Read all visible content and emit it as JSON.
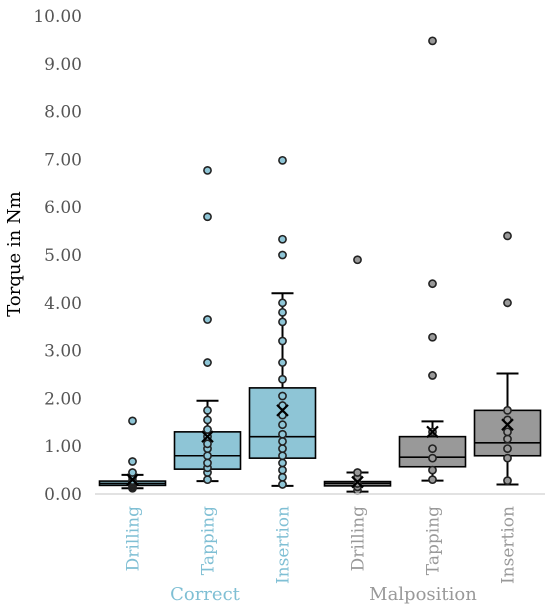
{
  "chart_data": {
    "type": "box",
    "title": "",
    "xlabel": "",
    "ylabel": "Torque in Nm",
    "ylim": [
      0,
      10
    ],
    "yticks": [
      "0.00",
      "1.00",
      "2.00",
      "3.00",
      "4.00",
      "5.00",
      "6.00",
      "7.00",
      "8.00",
      "9.00",
      "10.00"
    ],
    "grid": false,
    "groups": [
      {
        "label": "Correct",
        "color": "#7fbfd4"
      },
      {
        "label": "Malposition",
        "color": "#999999"
      }
    ],
    "boxes": [
      {
        "category": "Drilling",
        "group": "Correct",
        "fill": "#8ec5d6",
        "whisker_low": 0.12,
        "q1": 0.18,
        "median": 0.22,
        "q3": 0.27,
        "whisker_high": 0.4,
        "mean": 0.3,
        "points": [
          0.12,
          0.15,
          0.18,
          0.2,
          0.22,
          0.25,
          0.28,
          0.35,
          0.45,
          0.68,
          1.53
        ]
      },
      {
        "category": "Tapping",
        "group": "Correct",
        "fill": "#8ec5d6",
        "whisker_low": 0.27,
        "q1": 0.52,
        "median": 0.8,
        "q3": 1.3,
        "whisker_high": 1.95,
        "mean": 1.2,
        "points": [
          0.3,
          0.45,
          0.55,
          0.65,
          0.8,
          0.95,
          1.05,
          1.2,
          1.35,
          1.55,
          1.75,
          2.75,
          3.65,
          5.8,
          6.77
        ]
      },
      {
        "category": "Insertion",
        "group": "Correct",
        "fill": "#8ec5d6",
        "whisker_low": 0.17,
        "q1": 0.75,
        "median": 1.2,
        "q3": 2.22,
        "whisker_high": 4.2,
        "mean": 1.75,
        "points": [
          0.2,
          0.35,
          0.5,
          0.65,
          0.8,
          0.95,
          1.1,
          1.25,
          1.45,
          1.65,
          1.85,
          2.05,
          2.4,
          2.75,
          3.2,
          3.6,
          3.8,
          4.0,
          5.0,
          5.33,
          6.98
        ]
      },
      {
        "category": "Drilling",
        "group": "Malposition",
        "fill": "#999999",
        "whisker_low": 0.05,
        "q1": 0.17,
        "median": 0.22,
        "q3": 0.26,
        "whisker_high": 0.45,
        "mean": 0.25,
        "points": [
          0.07,
          0.15,
          0.22,
          0.35,
          0.45,
          4.9
        ]
      },
      {
        "category": "Tapping",
        "group": "Malposition",
        "fill": "#999999",
        "whisker_low": 0.28,
        "q1": 0.57,
        "median": 0.77,
        "q3": 1.2,
        "whisker_high": 1.52,
        "mean": 1.3,
        "points": [
          0.3,
          0.5,
          0.75,
          0.95,
          1.3,
          2.48,
          3.28,
          4.4,
          9.48
        ]
      },
      {
        "category": "Insertion",
        "group": "Malposition",
        "fill": "#999999",
        "whisker_low": 0.2,
        "q1": 0.8,
        "median": 1.07,
        "q3": 1.75,
        "whisker_high": 2.52,
        "mean": 1.45,
        "points": [
          0.28,
          0.75,
          0.95,
          1.15,
          1.3,
          1.55,
          1.75,
          4.0,
          5.4
        ]
      }
    ]
  }
}
